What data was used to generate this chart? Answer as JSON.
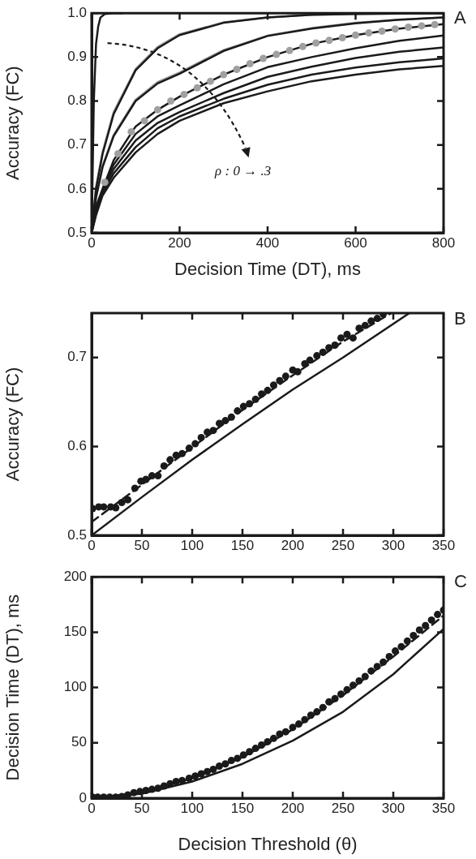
{
  "chart_data": [
    {
      "type": "line",
      "title": "A",
      "xlabel": "Decision Time (DT), ms",
      "ylabel": "Accuracy (FC)",
      "x": [
        0,
        10,
        25,
        50,
        100,
        150,
        200,
        300,
        400,
        500,
        600,
        700,
        800
      ],
      "xlim": [
        0,
        800
      ],
      "xticks": [
        0,
        200,
        400,
        600,
        800
      ],
      "ylim": [
        0.5,
        1.0
      ],
      "yticks": [
        0.5,
        0.6,
        0.7,
        0.8,
        0.9,
        {
          "value": 1,
          "label": "1.0"
        }
      ],
      "grid": false,
      "legend": false,
      "marker": "none",
      "line_style": "solid",
      "annotations": [
        "ρ : 0 → .3"
      ],
      "series": [
        {
          "color": "#999999",
          "values": [
            0.5,
            0.605,
            0.685,
            0.775,
            0.873,
            0.923,
            0.952,
            0.979,
            0.99,
            0.996,
            0.998,
            0.999,
            1.0
          ]
        },
        {
          "color": "#999999",
          "values": [
            0.5,
            0.583,
            0.653,
            0.723,
            0.803,
            0.843,
            0.865,
            0.916,
            0.949,
            0.966,
            0.978,
            0.985,
            0.99
          ]
        },
        {
          "color": "#1a1a1a",
          "x": [
            0,
            5,
            10,
            15,
            20,
            30,
            50,
            70
          ],
          "values": [
            0.5,
            0.8,
            0.93,
            0.97,
            0.99,
            0.998,
            1.0,
            1.0
          ]
        },
        {
          "color": "#1a1a1a",
          "values": [
            0.5,
            0.6,
            0.68,
            0.77,
            0.87,
            0.92,
            0.95,
            0.978,
            0.99,
            0.996,
            0.998,
            0.999,
            1.0
          ]
        },
        {
          "color": "#1a1a1a",
          "values": [
            0.5,
            0.58,
            0.65,
            0.72,
            0.8,
            0.84,
            0.862,
            0.914,
            0.948,
            0.965,
            0.977,
            0.985,
            0.99
          ]
        },
        {
          "color": "#1a1a1a",
          "values": [
            0.5,
            0.56,
            0.6,
            0.665,
            0.742,
            0.78,
            0.81,
            0.86,
            0.9,
            0.93,
            0.95,
            0.965,
            0.975
          ]
        },
        {
          "color": "#1a1a1a",
          "values": [
            0.5,
            0.555,
            0.6,
            0.655,
            0.725,
            0.765,
            0.79,
            0.838,
            0.877,
            0.9,
            0.92,
            0.937,
            0.949
          ]
        },
        {
          "color": "#1a1a1a",
          "values": [
            0.5,
            0.55,
            0.595,
            0.645,
            0.71,
            0.75,
            0.775,
            0.818,
            0.855,
            0.878,
            0.898,
            0.912,
            0.922
          ]
        },
        {
          "color": "#1a1a1a",
          "values": [
            0.5,
            0.545,
            0.59,
            0.635,
            0.695,
            0.738,
            0.765,
            0.805,
            0.837,
            0.86,
            0.876,
            0.888,
            0.897
          ]
        },
        {
          "color": "#1a1a1a",
          "values": [
            0.5,
            0.54,
            0.585,
            0.625,
            0.683,
            0.725,
            0.755,
            0.795,
            0.822,
            0.845,
            0.86,
            0.872,
            0.88
          ]
        },
        {
          "type": "scatter",
          "marker": "circle",
          "color": "#a0a0a0",
          "x": [
            30,
            60,
            90,
            120,
            150,
            180,
            210,
            240,
            270,
            300,
            330,
            360,
            390,
            420,
            450,
            480,
            510,
            540,
            570,
            600,
            630,
            660,
            690,
            720,
            750,
            780
          ],
          "values": [
            0.615,
            0.68,
            0.73,
            0.755,
            0.78,
            0.8,
            0.815,
            0.83,
            0.845,
            0.86,
            0.872,
            0.885,
            0.897,
            0.906,
            0.915,
            0.924,
            0.932,
            0.938,
            0.944,
            0.95,
            0.955,
            0.959,
            0.964,
            0.968,
            0.971,
            0.974
          ]
        }
      ]
    },
    {
      "type": "line",
      "title": "B",
      "ylabel": "Accuracy (FC)",
      "xlim": [
        0,
        350
      ],
      "xticks": [
        0,
        50,
        100,
        150,
        200,
        250,
        300,
        350
      ],
      "ylim": [
        0.5,
        0.75
      ],
      "yticks": [
        0.5,
        0.6,
        0.7
      ],
      "grid": false,
      "legend": false,
      "marker": "none",
      "series": [
        {
          "color": "#1a1a1a",
          "line_style": "solid",
          "x": [
            0,
            50,
            100,
            150,
            200,
            250,
            316
          ],
          "values": [
            0.5,
            0.543,
            0.585,
            0.625,
            0.664,
            0.7,
            0.75
          ]
        },
        {
          "color": "#1a1a1a",
          "line_style": "dashed",
          "x": [
            0,
            50,
            100,
            150,
            200,
            250,
            298
          ],
          "values": [
            0.515,
            0.557,
            0.599,
            0.641,
            0.68,
            0.718,
            0.75
          ]
        },
        {
          "type": "scatter",
          "marker": "circle",
          "color": "#1a1a1a",
          "x": [
            1,
            7,
            12,
            19,
            24,
            30,
            36,
            43,
            49,
            54,
            60,
            66,
            72,
            78,
            84,
            90,
            97,
            103,
            109,
            115,
            121,
            127,
            133,
            139,
            145,
            151,
            157,
            163,
            169,
            175,
            181,
            187,
            193,
            200,
            205,
            212,
            217,
            224,
            230,
            236,
            242,
            248,
            254,
            260,
            266,
            272,
            278,
            284,
            290
          ],
          "values": [
            0.53,
            0.532,
            0.532,
            0.532,
            0.531,
            0.537,
            0.54,
            0.553,
            0.561,
            0.563,
            0.567,
            0.567,
            0.578,
            0.585,
            0.59,
            0.592,
            0.598,
            0.603,
            0.61,
            0.616,
            0.618,
            0.626,
            0.629,
            0.633,
            0.64,
            0.645,
            0.648,
            0.653,
            0.659,
            0.663,
            0.669,
            0.674,
            0.679,
            0.686,
            0.684,
            0.693,
            0.697,
            0.702,
            0.706,
            0.711,
            0.714,
            0.722,
            0.726,
            0.722,
            0.733,
            0.736,
            0.741,
            0.744,
            0.749
          ]
        }
      ]
    },
    {
      "type": "line",
      "title": "C",
      "xlabel": "Decision Threshold (θ)",
      "ylabel": "Decision Time (DT), ms",
      "xlim": [
        0,
        350
      ],
      "xticks": [
        0,
        50,
        100,
        150,
        200,
        250,
        300,
        350
      ],
      "ylim": [
        0,
        200
      ],
      "yticks": [
        0,
        50,
        100,
        150,
        200
      ],
      "grid": false,
      "legend": false,
      "marker": "none",
      "series": [
        {
          "color": "#1a1a1a",
          "line_style": "solid",
          "x": [
            0,
            50,
            100,
            150,
            200,
            250,
            300,
            350
          ],
          "values": [
            0,
            4,
            15,
            31,
            52,
            78,
            112,
            153
          ]
        },
        {
          "color": "#1a1a1a",
          "line_style": "dashed",
          "x": [
            0,
            50,
            100,
            150,
            200,
            250,
            300,
            350
          ],
          "values": [
            0,
            5,
            18,
            37,
            62,
            93,
            128,
            165
          ]
        },
        {
          "type": "scatter",
          "marker": "circle",
          "color": "#1a1a1a",
          "x": [
            1,
            6,
            12,
            18,
            24,
            30,
            36,
            42,
            48,
            54,
            60,
            66,
            72,
            78,
            84,
            90,
            97,
            103,
            109,
            115,
            121,
            127,
            133,
            139,
            145,
            151,
            157,
            163,
            169,
            175,
            181,
            187,
            193,
            200,
            206,
            212,
            218,
            224,
            230,
            236,
            242,
            248,
            254,
            260,
            266,
            272,
            278,
            284,
            290,
            296,
            302,
            308,
            314,
            320,
            326,
            332,
            338,
            344,
            350
          ],
          "values": [
            1,
            1,
            1,
            1,
            1,
            1.5,
            3,
            5,
            6,
            7,
            8,
            9,
            11,
            13,
            15,
            16,
            18,
            20,
            22,
            24,
            26,
            29,
            31,
            34,
            36,
            39,
            42,
            45,
            48,
            51,
            54,
            58,
            60,
            64,
            67,
            71,
            75,
            78,
            82,
            87,
            90,
            94,
            98,
            102,
            106,
            110,
            115,
            119,
            123,
            128,
            133,
            137,
            142,
            147,
            152,
            156,
            161,
            166,
            170
          ]
        }
      ]
    }
  ]
}
